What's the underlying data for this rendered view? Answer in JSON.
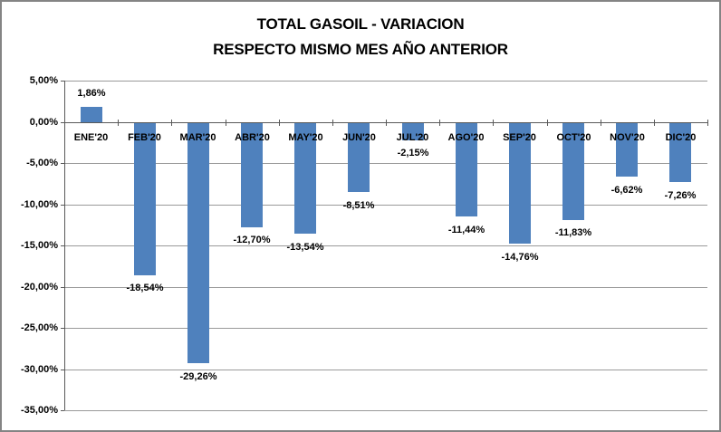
{
  "chart": {
    "title_line1": "TOTAL GASOIL - VARIACION",
    "title_line2": "RESPECTO MISMO MES AÑO ANTERIOR"
  },
  "chart_data": {
    "type": "bar",
    "title": "TOTAL GASOIL - VARIACION RESPECTO MISMO MES AÑO ANTERIOR",
    "xlabel": "",
    "ylabel": "",
    "categories": [
      "ENE'20",
      "FEB'20",
      "MAR'20",
      "ABR'20",
      "MAY'20",
      "JUN'20",
      "JUL'20",
      "AGO'20",
      "SEP'20",
      "OCT'20",
      "NOV'20",
      "DIC'20"
    ],
    "values": [
      1.86,
      -18.54,
      -29.26,
      -12.7,
      -13.54,
      -8.51,
      -2.15,
      -11.44,
      -14.76,
      -11.83,
      -6.62,
      -7.26
    ],
    "value_labels": [
      "1,86%",
      "-18,54%",
      "-29,26%",
      "-12,70%",
      "-13,54%",
      "-8,51%",
      "-2,15%",
      "-11,44%",
      "-14,76%",
      "-11,83%",
      "-6,62%",
      "-7,26%"
    ],
    "y_tick_labels": [
      "5,00%",
      "0,00%",
      "-5,00%",
      "-10,00%",
      "-15,00%",
      "-20,00%",
      "-25,00%",
      "-30,00%",
      "-35,00%"
    ],
    "ylim": [
      -35,
      5
    ],
    "y_step": 5,
    "grid": true,
    "legend": "none",
    "bar_color": "#4F81BD",
    "gridline_color": "#9a9a9a",
    "axis_color": "#595959",
    "text_color": "#000000",
    "background_color": "#ffffff",
    "border_color": "#848484"
  }
}
